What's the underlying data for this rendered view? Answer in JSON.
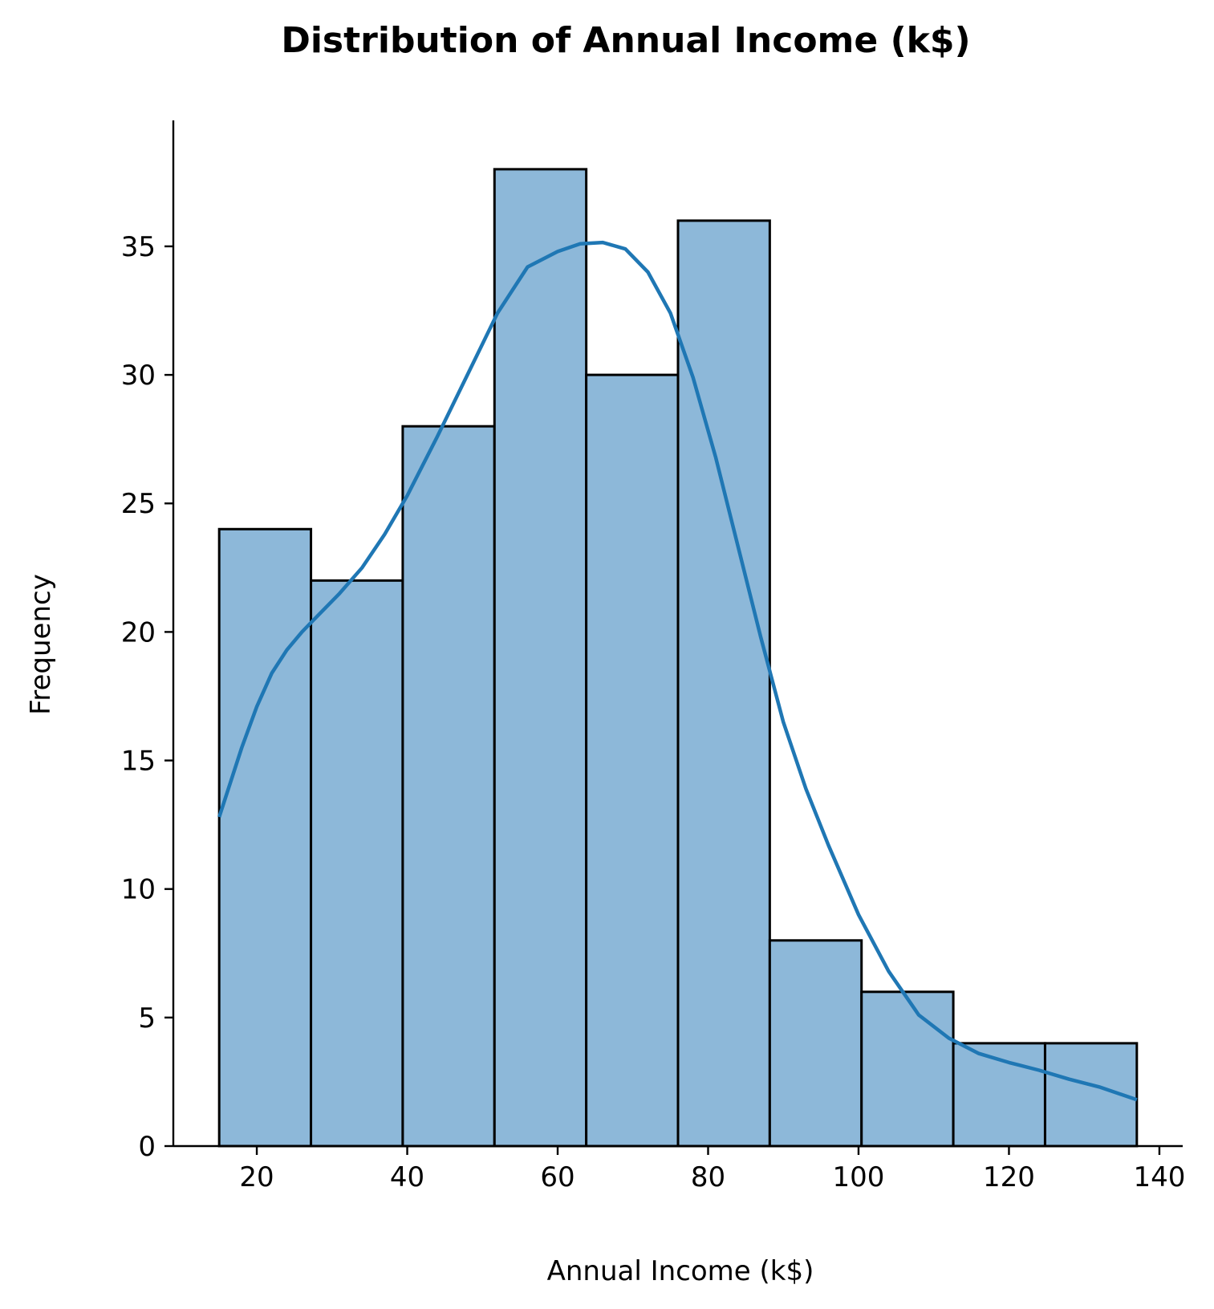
{
  "chart_data": {
    "type": "bar",
    "title": "Distribution of Annual Income (k$)",
    "xlabel": "Annual Income (k$)",
    "ylabel": "Frequency",
    "xlim": [
      8.9,
      143.1
    ],
    "ylim": [
      0,
      39.9
    ],
    "xticks": [
      20,
      40,
      60,
      80,
      100,
      120,
      140
    ],
    "yticks": [
      0,
      5,
      10,
      15,
      20,
      25,
      30,
      35
    ],
    "bins": [
      {
        "start": 15.0,
        "end": 27.2,
        "count": 24
      },
      {
        "start": 27.2,
        "end": 39.4,
        "count": 22
      },
      {
        "start": 39.4,
        "end": 51.6,
        "count": 28
      },
      {
        "start": 51.6,
        "end": 63.8,
        "count": 38
      },
      {
        "start": 63.8,
        "end": 76.0,
        "count": 30
      },
      {
        "start": 76.0,
        "end": 88.2,
        "count": 36
      },
      {
        "start": 88.2,
        "end": 100.4,
        "count": 8
      },
      {
        "start": 100.4,
        "end": 112.6,
        "count": 6
      },
      {
        "start": 112.6,
        "end": 124.8,
        "count": 4
      },
      {
        "start": 124.8,
        "end": 137.0,
        "count": 4
      }
    ],
    "kde": {
      "x": [
        15,
        18,
        20,
        22,
        24,
        26,
        28,
        31,
        34,
        37,
        40,
        44,
        48,
        52,
        56,
        60,
        63,
        66,
        69,
        72,
        75,
        78,
        81,
        84,
        87,
        90,
        93,
        96,
        100,
        104,
        108,
        112,
        116,
        120,
        124,
        128,
        132,
        137
      ],
      "y": [
        12.8,
        15.5,
        17.1,
        18.4,
        19.3,
        20.0,
        20.6,
        21.5,
        22.5,
        23.8,
        25.3,
        27.6,
        30.0,
        32.4,
        34.2,
        34.8,
        35.1,
        35.15,
        34.9,
        34.0,
        32.4,
        29.9,
        26.8,
        23.3,
        19.8,
        16.5,
        13.9,
        11.7,
        9.0,
        6.8,
        5.1,
        4.2,
        3.6,
        3.25,
        2.95,
        2.6,
        2.3,
        1.8
      ]
    },
    "colors": {
      "bar_fill": "#8db8d9",
      "bar_edge": "#000000",
      "kde_line": "#1f77b4"
    },
    "grid": false,
    "legend": "none"
  }
}
